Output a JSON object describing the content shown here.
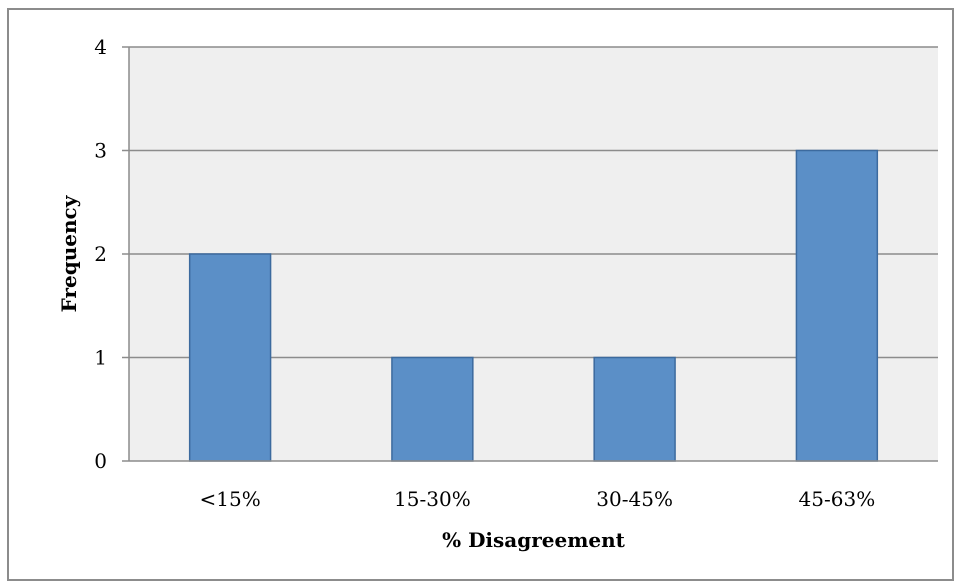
{
  "chart_data": {
    "type": "bar",
    "title": "",
    "xlabel": "% Disagreement",
    "ylabel": "Frequency",
    "categories": [
      "<15%",
      "15-30%",
      "30-45%",
      "45-63%"
    ],
    "values": [
      2,
      1,
      1,
      3
    ],
    "ylim": [
      0,
      4
    ],
    "yticks": [
      "0",
      "1",
      "2",
      "3",
      "4"
    ],
    "grid": true,
    "legend": "none",
    "colors": {
      "bar_fill": "#5b8fc7",
      "bar_stroke": "#3c6a9e",
      "plot_background": "#efefef",
      "gridline": "#8c8c8c",
      "axis": "#8c8c8c"
    }
  }
}
